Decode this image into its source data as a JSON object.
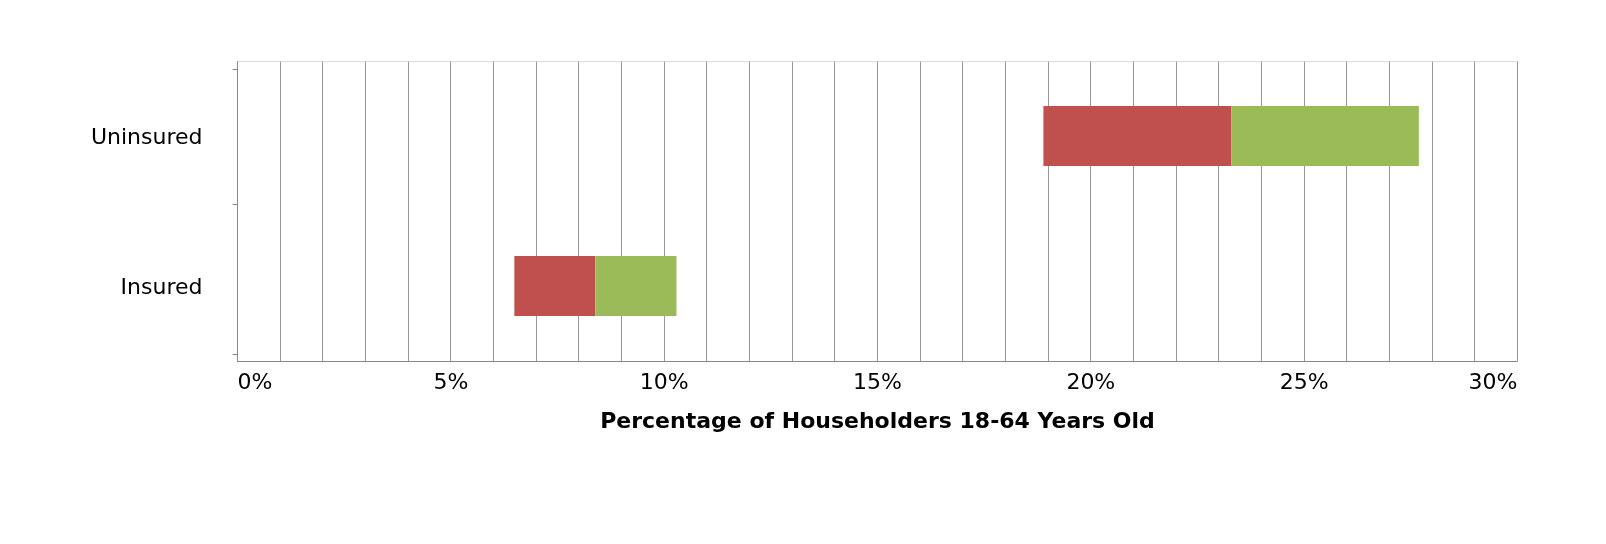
{
  "chart_data": {
    "type": "bar",
    "orientation": "horizontal",
    "xlabel": "Percentage of Householders 18-64 Years Old",
    "categories": [
      "Uninsured",
      "Insured"
    ],
    "series": [
      {
        "color": "#c0504d",
        "base": [
          18.9,
          6.5
        ],
        "values": [
          4.4,
          1.9
        ]
      },
      {
        "color": "#9bbb59",
        "base": [
          23.3,
          8.4
        ],
        "values": [
          4.4,
          1.9
        ]
      }
    ],
    "xlim": [
      0,
      30
    ],
    "xticks": [
      {
        "value": 0,
        "label": "0%"
      },
      {
        "value": 1,
        "label": null
      },
      {
        "value": 2,
        "label": null
      },
      {
        "value": 3,
        "label": null
      },
      {
        "value": 4,
        "label": null
      },
      {
        "value": 5,
        "label": "5%"
      },
      {
        "value": 6,
        "label": null
      },
      {
        "value": 7,
        "label": null
      },
      {
        "value": 8,
        "label": null
      },
      {
        "value": 9,
        "label": null
      },
      {
        "value": 10,
        "label": "10%"
      },
      {
        "value": 11,
        "label": null
      },
      {
        "value": 12,
        "label": null
      },
      {
        "value": 13,
        "label": null
      },
      {
        "value": 14,
        "label": null
      },
      {
        "value": 15,
        "label": "15%"
      },
      {
        "value": 16,
        "label": null
      },
      {
        "value": 17,
        "label": null
      },
      {
        "value": 18,
        "label": null
      },
      {
        "value": 19,
        "label": null
      },
      {
        "value": 20,
        "label": "20%"
      },
      {
        "value": 21,
        "label": null
      },
      {
        "value": 22,
        "label": null
      },
      {
        "value": 23,
        "label": null
      },
      {
        "value": 24,
        "label": null
      },
      {
        "value": 25,
        "label": "25%"
      },
      {
        "value": 26,
        "label": null
      },
      {
        "value": 27,
        "label": null
      },
      {
        "value": 28,
        "label": null
      },
      {
        "value": 29,
        "label": null
      },
      {
        "value": 30,
        "label": "30%"
      }
    ],
    "grid": "x",
    "legend": false
  }
}
